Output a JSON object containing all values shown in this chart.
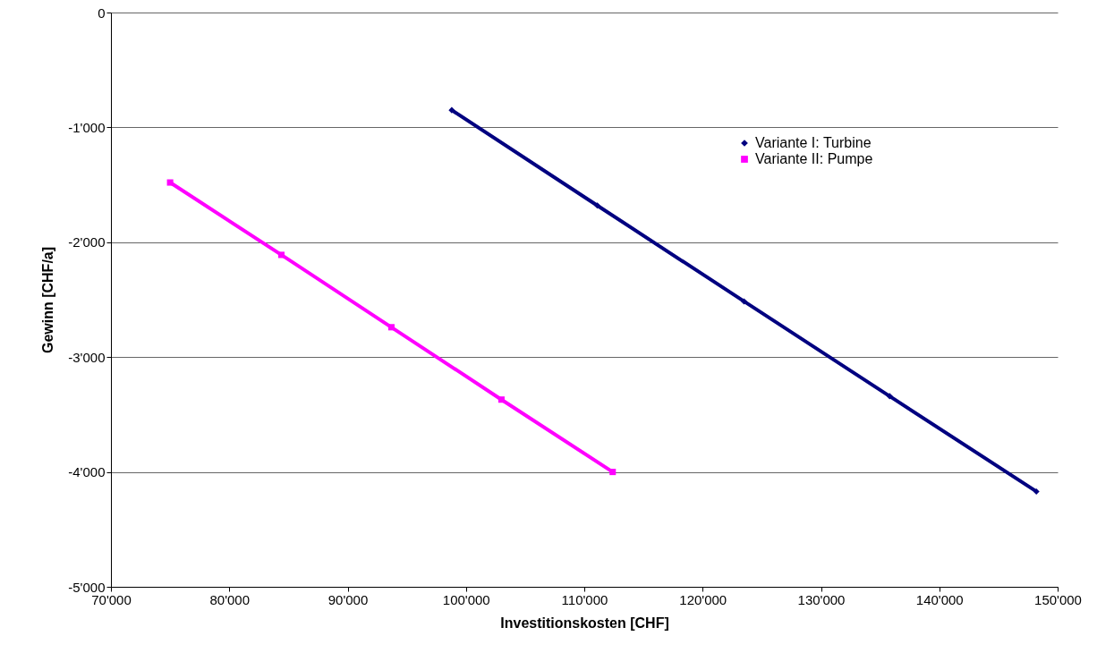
{
  "chart_data": {
    "type": "line",
    "xlabel": "Investitionskosten [CHF]",
    "ylabel": "Gewinn [CHF/a]",
    "series": [
      {
        "name": "Variante I: Turbine",
        "color": "#000080",
        "marker": "diamond",
        "x": [
          98800,
          111100,
          123500,
          135800,
          148200
        ],
        "values": [
          -850,
          -1680,
          -2515,
          -3340,
          -4170
        ]
      },
      {
        "name": "Variante II: Pumpe",
        "color": "#ff00ff",
        "marker": "square",
        "x": [
          75000,
          84400,
          93700,
          103000,
          112400
        ],
        "values": [
          -1480,
          -2110,
          -2740,
          -3370,
          -4000
        ]
      }
    ],
    "xlim": [
      70000,
      150000
    ],
    "xticks": [
      {
        "value": 70000,
        "label": "70'000"
      },
      {
        "value": 80000,
        "label": "80'000"
      },
      {
        "value": 90000,
        "label": "90'000"
      },
      {
        "value": 100000,
        "label": "100'000"
      },
      {
        "value": 110000,
        "label": "110'000"
      },
      {
        "value": 120000,
        "label": "120'000"
      },
      {
        "value": 130000,
        "label": "130'000"
      },
      {
        "value": 140000,
        "label": "140'000"
      },
      {
        "value": 150000,
        "label": "150'000"
      }
    ],
    "ylim": [
      -5000,
      0
    ],
    "yticks": [
      {
        "value": -5000,
        "label": "-5'000"
      },
      {
        "value": -4000,
        "label": "-4'000"
      },
      {
        "value": -3000,
        "label": "-3'000"
      },
      {
        "value": -2000,
        "label": "-2'000"
      },
      {
        "value": -1000,
        "label": "-1'000"
      },
      0
    ],
    "grid": "y",
    "legend": "top right"
  }
}
